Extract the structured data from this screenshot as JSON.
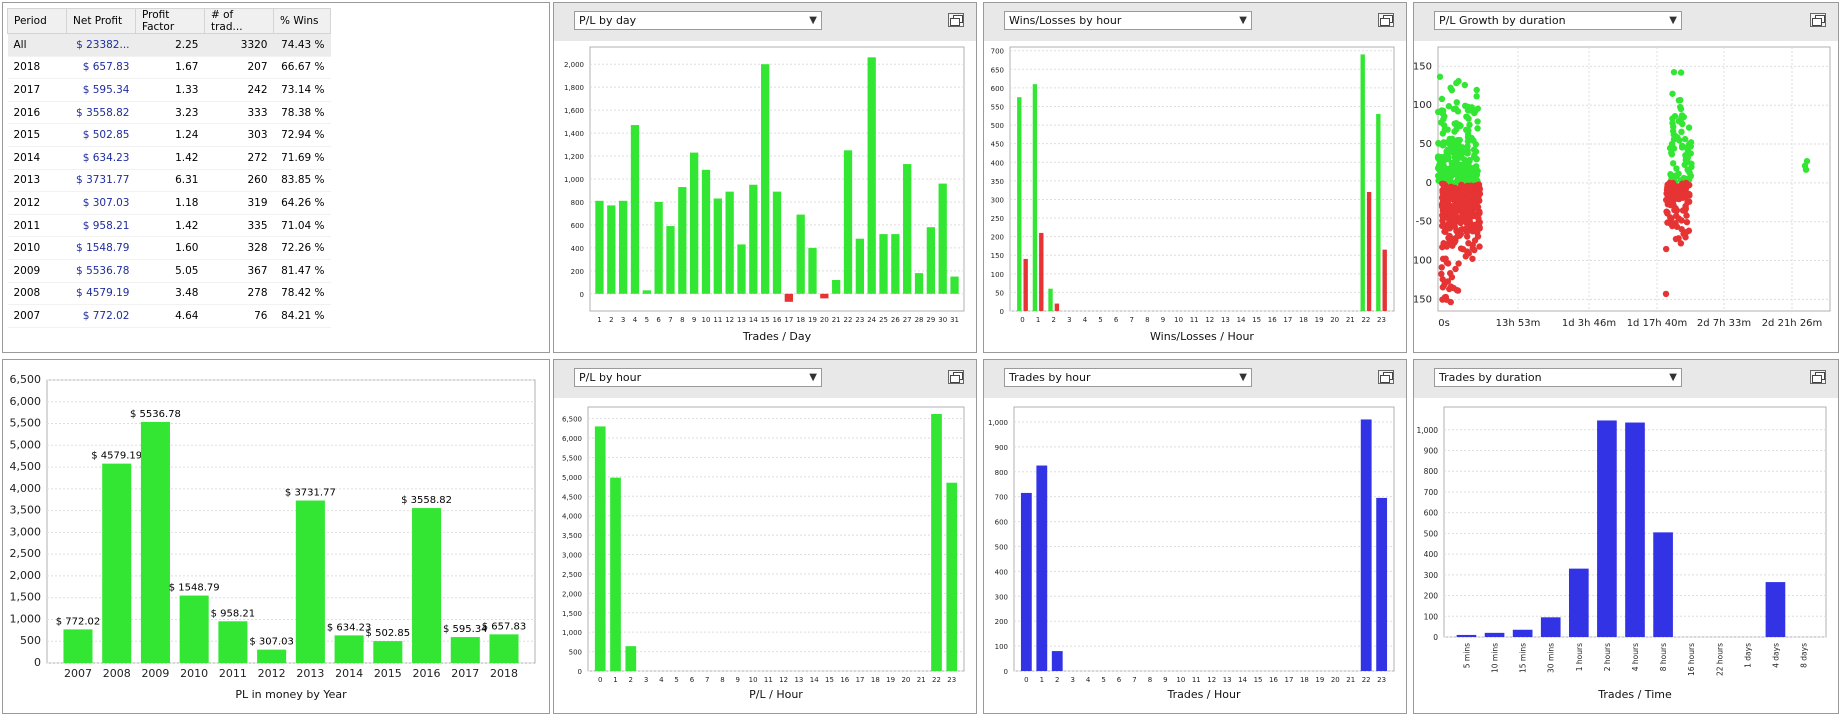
{
  "stats_table": {
    "headers": [
      "Period",
      "Net Profit",
      "Profit Factor",
      "# of trad...",
      "% Wins"
    ],
    "rows": [
      [
        "All",
        "$ 23382...",
        "2.25",
        "3320",
        "74.43 %"
      ],
      [
        "2018",
        "$ 657.83",
        "1.67",
        "207",
        "66.67 %"
      ],
      [
        "2017",
        "$ 595.34",
        "1.33",
        "242",
        "73.14 %"
      ],
      [
        "2016",
        "$ 3558.82",
        "3.23",
        "333",
        "78.38 %"
      ],
      [
        "2015",
        "$ 502.85",
        "1.24",
        "303",
        "72.94 %"
      ],
      [
        "2014",
        "$ 634.23",
        "1.42",
        "272",
        "71.69 %"
      ],
      [
        "2013",
        "$ 3731.77",
        "6.31",
        "260",
        "83.85 %"
      ],
      [
        "2012",
        "$ 307.03",
        "1.18",
        "319",
        "64.26 %"
      ],
      [
        "2011",
        "$ 958.21",
        "1.42",
        "335",
        "71.04 %"
      ],
      [
        "2010",
        "$ 1548.79",
        "1.60",
        "328",
        "72.26 %"
      ],
      [
        "2009",
        "$ 5536.78",
        "5.05",
        "367",
        "81.47 %"
      ],
      [
        "2008",
        "$ 4579.19",
        "3.48",
        "278",
        "78.42 %"
      ],
      [
        "2007",
        "$ 772.02",
        "4.64",
        "76",
        "84.21 %"
      ]
    ]
  },
  "colors": {
    "green": "#33e633",
    "red": "#e63333",
    "blue": "#3333e6",
    "grid": "#dedede",
    "axis": "#888888"
  },
  "panels": {
    "pl_by_day": {
      "dropdown": "P/L by day"
    },
    "wins_losses_by_hour": {
      "dropdown": "Wins/Losses by hour"
    },
    "pl_growth_by_duration": {
      "dropdown": "P/L Growth by duration"
    },
    "pl_by_hour": {
      "dropdown": "P/L by hour"
    },
    "trades_by_hour": {
      "dropdown": "Trades by hour"
    },
    "trades_by_duration": {
      "dropdown": "Trades by duration"
    }
  },
  "chart_data": [
    {
      "id": "pl_by_day",
      "type": "bar",
      "xlabel": "Trades / Day",
      "categories": [
        "1",
        "2",
        "3",
        "4",
        "5",
        "6",
        "7",
        "8",
        "9",
        "10",
        "11",
        "12",
        "13",
        "14",
        "15",
        "16",
        "17",
        "18",
        "19",
        "20",
        "21",
        "22",
        "23",
        "24",
        "25",
        "26",
        "27",
        "28",
        "29",
        "30",
        "31"
      ],
      "values": [
        810,
        770,
        810,
        1470,
        30,
        800,
        590,
        930,
        1230,
        1080,
        830,
        890,
        430,
        950,
        2000,
        890,
        -70,
        690,
        400,
        -40,
        120,
        1250,
        480,
        2060,
        520,
        520,
        1130,
        180,
        580,
        960,
        150
      ],
      "ylim": [
        -150,
        2150
      ],
      "yticks": [
        0,
        200,
        400,
        600,
        800,
        1000,
        1200,
        1400,
        1600,
        1800,
        2000
      ]
    },
    {
      "id": "wins_losses_by_hour",
      "type": "bar",
      "xlabel": "Wins/Losses / Hour",
      "categories": [
        "0",
        "1",
        "2",
        "3",
        "4",
        "5",
        "6",
        "7",
        "8",
        "9",
        "10",
        "11",
        "12",
        "13",
        "14",
        "15",
        "16",
        "17",
        "18",
        "19",
        "20",
        "21",
        "22",
        "23"
      ],
      "series": [
        {
          "name": "wins",
          "values": [
            575,
            610,
            60,
            0,
            0,
            0,
            0,
            0,
            0,
            0,
            0,
            0,
            0,
            0,
            0,
            0,
            0,
            0,
            0,
            0,
            0,
            0,
            690,
            530
          ]
        },
        {
          "name": "losses",
          "values": [
            140,
            210,
            20,
            0,
            0,
            0,
            0,
            0,
            0,
            0,
            0,
            0,
            0,
            0,
            0,
            0,
            0,
            0,
            0,
            0,
            0,
            0,
            320,
            165
          ]
        }
      ],
      "ylim": [
        0,
        710
      ],
      "yticks": [
        0,
        50,
        100,
        150,
        200,
        250,
        300,
        350,
        400,
        450,
        500,
        550,
        600,
        650,
        700
      ]
    },
    {
      "id": "pl_growth_by_duration",
      "type": "scatter",
      "xticks": [
        "0s",
        "13h 53m",
        "1d 3h 46m",
        "1d 17h 40m",
        "2d 7h 33m",
        "2d 21h 26m"
      ],
      "ylim": [
        -165,
        175
      ],
      "yticks": [
        -150,
        -100,
        -50,
        0,
        50,
        100,
        150
      ]
    },
    {
      "id": "pl_by_hour",
      "type": "bar",
      "xlabel": "P/L / Hour",
      "categories": [
        "0",
        "1",
        "2",
        "3",
        "4",
        "5",
        "6",
        "7",
        "8",
        "9",
        "10",
        "11",
        "12",
        "13",
        "14",
        "15",
        "16",
        "17",
        "18",
        "19",
        "20",
        "21",
        "22",
        "23"
      ],
      "values": [
        6300,
        4980,
        640,
        0,
        0,
        0,
        0,
        0,
        0,
        0,
        0,
        0,
        0,
        0,
        0,
        0,
        0,
        0,
        0,
        0,
        0,
        0,
        6620,
        4850
      ],
      "ylim": [
        0,
        6800
      ],
      "yticks": [
        0,
        500,
        1000,
        1500,
        2000,
        2500,
        3000,
        3500,
        4000,
        4500,
        5000,
        5500,
        6000,
        6500
      ]
    },
    {
      "id": "trades_by_hour",
      "type": "bar",
      "xlabel": "Trades / Hour",
      "categories": [
        "0",
        "1",
        "2",
        "3",
        "4",
        "5",
        "6",
        "7",
        "8",
        "9",
        "10",
        "11",
        "12",
        "13",
        "14",
        "15",
        "16",
        "17",
        "18",
        "19",
        "20",
        "21",
        "22",
        "23"
      ],
      "values": [
        715,
        825,
        80,
        0,
        0,
        0,
        0,
        0,
        0,
        0,
        0,
        0,
        0,
        0,
        0,
        0,
        0,
        0,
        0,
        0,
        0,
        0,
        1010,
        695
      ],
      "ylim": [
        0,
        1060
      ],
      "yticks": [
        0,
        100,
        200,
        300,
        400,
        500,
        600,
        700,
        800,
        900,
        1000
      ]
    },
    {
      "id": "trades_by_duration",
      "type": "bar",
      "xlabel": "Trades / Time",
      "categories": [
        "5 mins",
        "10 mins",
        "15 mins",
        "30 mins",
        "1 hours",
        "2 hours",
        "4 hours",
        "8 hours",
        "16 hours",
        "22 hours",
        "1 days",
        "4 days",
        "8 days"
      ],
      "values": [
        10,
        20,
        35,
        95,
        330,
        1045,
        1035,
        505,
        0,
        0,
        0,
        265,
        0
      ],
      "ylim": [
        0,
        1110
      ],
      "yticks": [
        0,
        100,
        200,
        300,
        400,
        500,
        600,
        700,
        800,
        900,
        1000
      ]
    },
    {
      "id": "pl_by_year",
      "type": "bar",
      "xlabel": "PL in money by Year",
      "categories": [
        "2007",
        "2008",
        "2009",
        "2010",
        "2011",
        "2012",
        "2013",
        "2014",
        "2015",
        "2016",
        "2017",
        "2018"
      ],
      "values": [
        772.02,
        4579.19,
        5536.78,
        1548.79,
        958.21,
        307.03,
        3731.77,
        634.23,
        502.85,
        3558.82,
        595.34,
        657.83
      ],
      "labels": [
        "$ 772.02",
        "$ 4579.19",
        "$ 5536.78",
        "$ 1548.79",
        "$ 958.21",
        "$ 307.03",
        "$ 3731.77",
        "$ 634.23",
        "$ 502.85",
        "$ 3558.82",
        "$ 595.34",
        "$ 657.83"
      ],
      "ylim": [
        0,
        6500
      ],
      "yticks": [
        0,
        500,
        1000,
        1500,
        2000,
        2500,
        3000,
        3500,
        4000,
        4500,
        5000,
        5500,
        6000,
        6500
      ]
    }
  ]
}
